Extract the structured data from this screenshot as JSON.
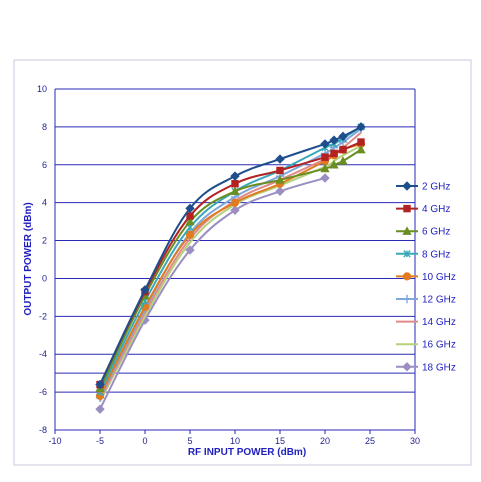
{
  "chart_data": {
    "type": "line",
    "title": "",
    "xlabel": "RF INPUT POWER (dBm)",
    "ylabel": "OUTPUT POWER (dBm)",
    "xlim": [
      -10,
      30
    ],
    "ylim": [
      -8,
      10
    ],
    "xticks": [
      -10,
      -5,
      0,
      5,
      10,
      15,
      20,
      25,
      30
    ],
    "yticks": [
      -8,
      -6,
      -4,
      -2,
      0,
      2,
      4,
      6,
      8,
      10
    ],
    "grid": "horizontal",
    "legend": "right",
    "series": [
      {
        "name": "2 GHz",
        "color": "#1f4e8c",
        "marker": "diamond",
        "x": [
          -5,
          0,
          5,
          10,
          15,
          20,
          21,
          22,
          24
        ],
        "y": [
          -5.6,
          -0.6,
          3.7,
          5.4,
          6.3,
          7.1,
          7.3,
          7.5,
          8.0
        ]
      },
      {
        "name": "4 GHz",
        "color": "#b22222",
        "marker": "square",
        "x": [
          -5,
          0,
          5,
          10,
          15,
          20,
          21,
          22,
          24
        ],
        "y": [
          -5.6,
          -0.7,
          3.3,
          5.0,
          5.7,
          6.4,
          6.6,
          6.8,
          7.2
        ]
      },
      {
        "name": "6 GHz",
        "color": "#6b8e23",
        "marker": "triangle",
        "x": [
          -5,
          0,
          5,
          10,
          15,
          20,
          21,
          22,
          24
        ],
        "y": [
          -5.8,
          -0.9,
          3.0,
          4.6,
          5.2,
          5.8,
          6.0,
          6.2,
          6.8
        ]
      },
      {
        "name": "8 GHz",
        "color": "#3aa8b8",
        "marker": "x",
        "x": [
          -5,
          0,
          5,
          10,
          15,
          20,
          21,
          22,
          24
        ],
        "y": [
          -6.0,
          -1.2,
          2.7,
          4.6,
          5.7,
          6.9,
          7.1,
          7.4,
          8.0
        ]
      },
      {
        "name": "10 GHz",
        "color": "#e07b20",
        "marker": "circle",
        "x": [
          -5,
          0,
          5,
          10,
          15,
          20,
          21,
          22,
          24
        ],
        "y": [
          -6.2,
          -1.5,
          2.3,
          4.0,
          5.0,
          6.2,
          6.5,
          6.8,
          7.1
        ]
      },
      {
        "name": "12 GHz",
        "color": "#7fa7d9",
        "marker": "plus",
        "x": [
          -5,
          0,
          5,
          10,
          15,
          20,
          21,
          22,
          24
        ],
        "y": [
          -6.3,
          -1.6,
          2.4,
          4.3,
          5.4,
          6.6,
          6.9,
          7.2,
          7.9
        ]
      },
      {
        "name": "14 GHz",
        "color": "#e08a8a",
        "marker": "none",
        "x": [
          -5,
          0,
          5,
          10,
          15,
          20,
          21,
          22,
          24
        ],
        "y": [
          -6.4,
          -1.8,
          2.1,
          4.1,
          5.2,
          6.3,
          6.6,
          6.9,
          7.7
        ]
      },
      {
        "name": "16 GHz",
        "color": "#b5d07a",
        "marker": "none",
        "x": [
          -5,
          0,
          5,
          10,
          15,
          20,
          21,
          22,
          24
        ],
        "y": [
          -6.5,
          -2.0,
          1.9,
          3.9,
          4.9,
          5.9,
          6.2,
          6.5,
          7.0
        ]
      },
      {
        "name": "18 GHz",
        "color": "#9a8ec2",
        "marker": "diamond",
        "x": [
          -5,
          0,
          5,
          10,
          15,
          20
        ],
        "y": [
          -6.9,
          -2.2,
          1.5,
          3.6,
          4.6,
          5.3
        ]
      }
    ]
  }
}
